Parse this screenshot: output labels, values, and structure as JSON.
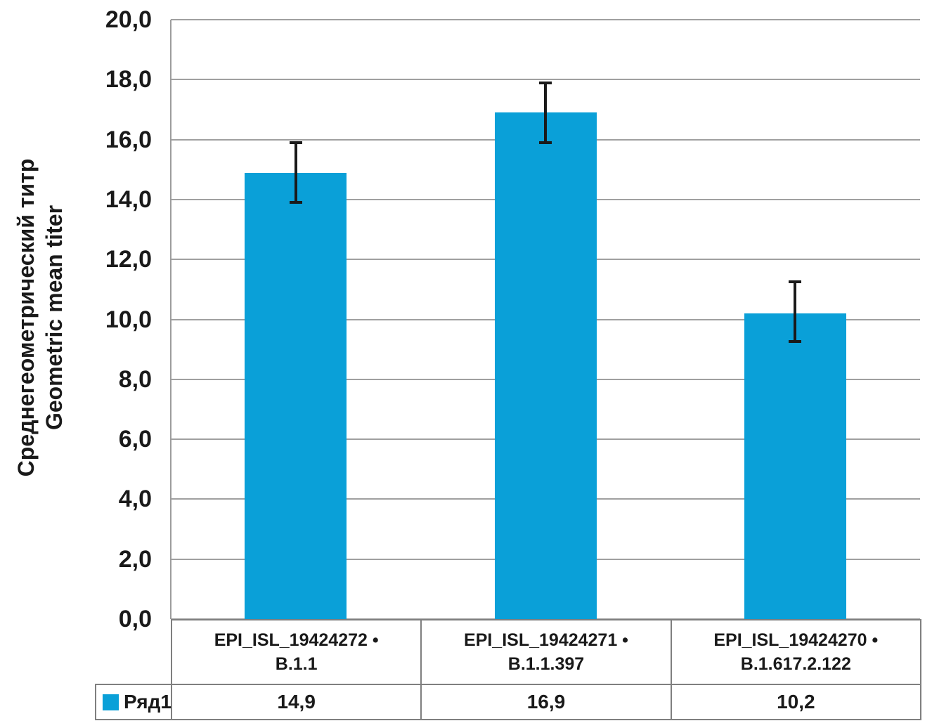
{
  "chart_data": {
    "type": "bar",
    "title": "",
    "ylabel_line1": "Среднегеометрический титр",
    "ylabel_line2": "Geometric mean titer",
    "ylim": [
      0,
      20
    ],
    "ytick_step": 2,
    "yticks": [
      {
        "value": 0,
        "label": "0,0"
      },
      {
        "value": 2,
        "label": "2,0"
      },
      {
        "value": 4,
        "label": "4,0"
      },
      {
        "value": 6,
        "label": "6,0"
      },
      {
        "value": 8,
        "label": "8,0"
      },
      {
        "value": 10,
        "label": "10,0"
      },
      {
        "value": 12,
        "label": "12,0"
      },
      {
        "value": 14,
        "label": "14,0"
      },
      {
        "value": 16,
        "label": "16,0"
      },
      {
        "value": 18,
        "label": "18,0"
      },
      {
        "value": 20,
        "label": "20,0"
      }
    ],
    "grid": true,
    "legend_position": "table-bottom-left",
    "categories": [
      {
        "line1": "EPI_ISL_19424272 •",
        "line2": "B.1.1"
      },
      {
        "line1": "EPI_ISL_19424271 •",
        "line2": "B.1.1.397"
      },
      {
        "line1": "EPI_ISL_19424270 •",
        "line2": "B.1.617.2.122"
      }
    ],
    "series": [
      {
        "name": "Ряд1",
        "values": [
          14.9,
          16.9,
          10.2
        ],
        "display_values": [
          "14,9",
          "16,9",
          "10,2"
        ],
        "error_plus": [
          1.0,
          1.0,
          1.05
        ],
        "error_minus": [
          1.0,
          1.0,
          0.95
        ],
        "color": "#0AA0D8"
      }
    ],
    "colors": {
      "bar": "#0AA0D8",
      "gridline": "#a0a0a0",
      "axis_line": "#9d9d9d",
      "table_border": "#7f7f7f",
      "error_bar": "#1a1a1a",
      "text": "#1a1a1a"
    }
  }
}
